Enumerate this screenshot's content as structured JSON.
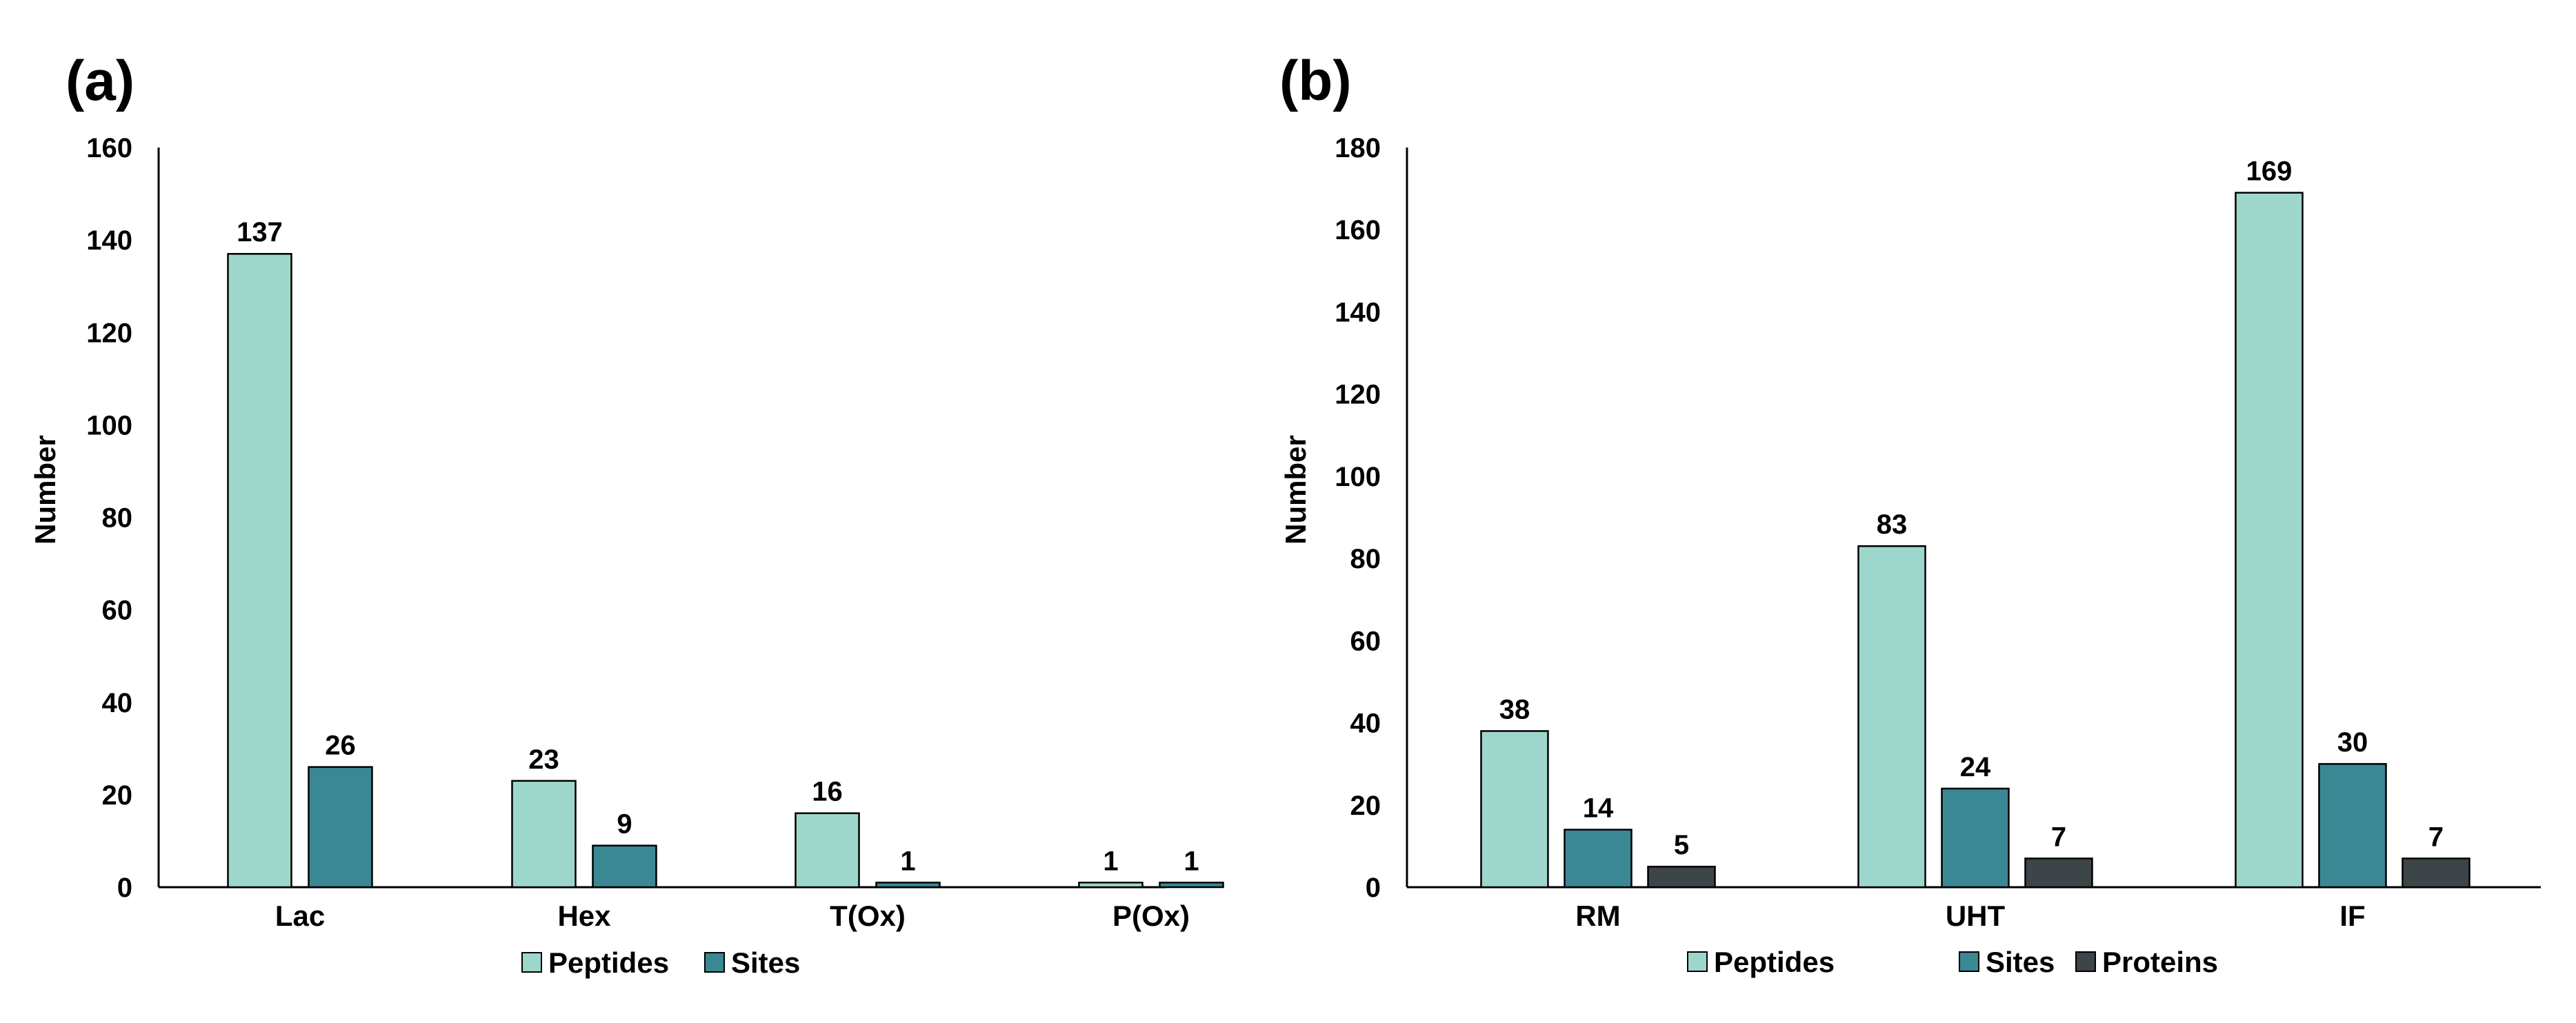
{
  "chart_data": [
    {
      "type": "bar",
      "panel_label": "(a)",
      "ylabel": "Number",
      "xlabel": "",
      "ylim": [
        0,
        160
      ],
      "yticks": [
        0,
        20,
        40,
        60,
        80,
        100,
        120,
        140,
        160
      ],
      "categories": [
        "Lac",
        "Hex",
        "T(Ox)",
        "P(Ox)"
      ],
      "series": [
        {
          "name": "Peptides",
          "color": "#9dd7cc",
          "values": [
            137,
            23,
            16,
            1
          ]
        },
        {
          "name": "Sites",
          "color": "#3a8894",
          "values": [
            26,
            9,
            1,
            1
          ]
        }
      ],
      "legend": "bottom"
    },
    {
      "type": "bar",
      "panel_label": "(b)",
      "ylabel": "Number",
      "xlabel": "",
      "ylim": [
        0,
        180
      ],
      "yticks": [
        0,
        20,
        40,
        60,
        80,
        100,
        120,
        140,
        160,
        180
      ],
      "categories": [
        "RM",
        "UHT",
        "IF"
      ],
      "series": [
        {
          "name": "Peptides",
          "color": "#9dd7cc",
          "values": [
            38,
            83,
            169
          ]
        },
        {
          "name": "Sites",
          "color": "#3a8894",
          "values": [
            14,
            24,
            30
          ]
        },
        {
          "name": "Proteins",
          "color": "#3d4548",
          "values": [
            5,
            7,
            7
          ]
        }
      ],
      "legend": "bottom"
    }
  ]
}
